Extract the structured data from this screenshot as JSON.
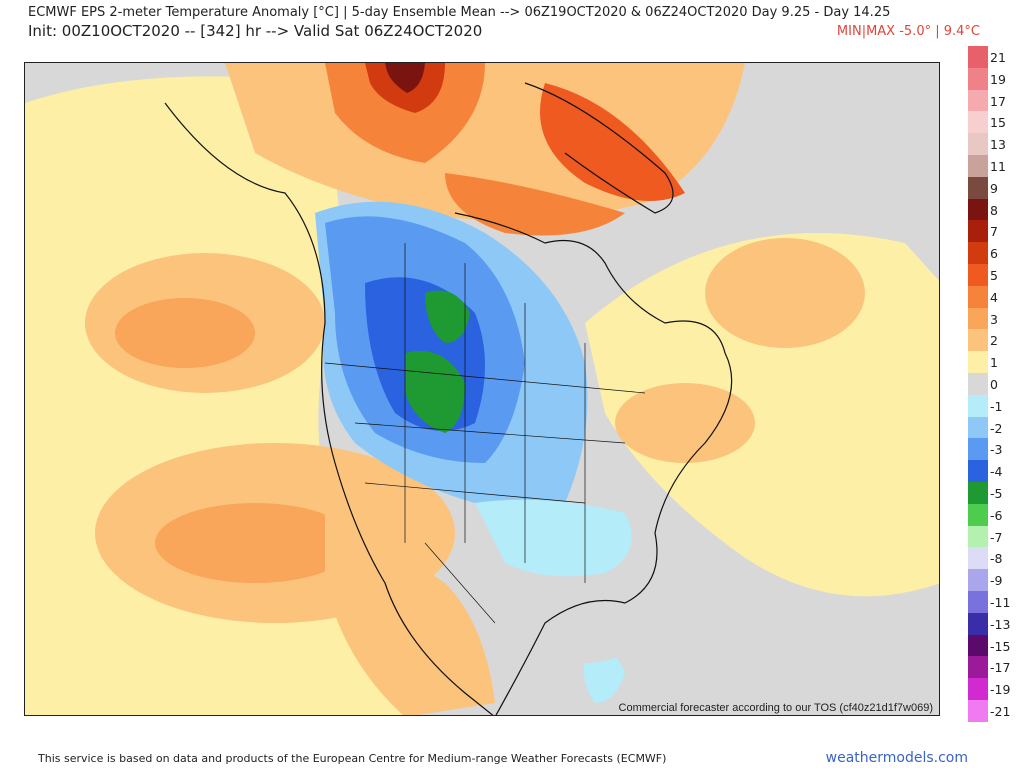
{
  "header": {
    "title": "ECMWF EPS 2-meter Temperature Anomaly [°C] | 5-day Ensemble Mean --> 06Z19OCT2020 & 06Z24OCT2020   Day 9.25 - Day 14.25",
    "init": "Init: 00Z10OCT2020 -- [342] hr --> Valid Sat 06Z24OCT2020",
    "minmax": "MIN|MAX -5.0° | 9.4°C"
  },
  "map": {
    "tos_notice": "Commercial forecaster according to our TOS (cf40z21d1f7w069)"
  },
  "legend": {
    "items": [
      {
        "label": "21",
        "color": "#e8606a"
      },
      {
        "label": "19",
        "color": "#ee8288"
      },
      {
        "label": "17",
        "color": "#f4aaae"
      },
      {
        "label": "15",
        "color": "#f7cfcf"
      },
      {
        "label": "13",
        "color": "#e8c8c2"
      },
      {
        "label": "11",
        "color": "#c9a39b"
      },
      {
        "label": "9",
        "color": "#7a4a3e"
      },
      {
        "label": "8",
        "color": "#7a1410"
      },
      {
        "label": "7",
        "color": "#a8200c"
      },
      {
        "label": "6",
        "color": "#d23a10"
      },
      {
        "label": "5",
        "color": "#ee5a20"
      },
      {
        "label": "4",
        "color": "#f5843a"
      },
      {
        "label": "3",
        "color": "#f9a55a"
      },
      {
        "label": "2",
        "color": "#fbc37c"
      },
      {
        "label": "1",
        "color": "#fdf0a6"
      },
      {
        "label": "0",
        "color": "#d8d8d8"
      },
      {
        "label": "-1",
        "color": "#b4ecfa"
      },
      {
        "label": "-2",
        "color": "#8ec8f7"
      },
      {
        "label": "-3",
        "color": "#5a9af0"
      },
      {
        "label": "-4",
        "color": "#2a62e0"
      },
      {
        "label": "-5",
        "color": "#1f9a32"
      },
      {
        "label": "-6",
        "color": "#4ecc4e"
      },
      {
        "label": "-7",
        "color": "#b4f0b0"
      },
      {
        "label": "-8",
        "color": "#dcdcf6"
      },
      {
        "label": "-9",
        "color": "#aaa6ec"
      },
      {
        "label": "-11",
        "color": "#7a72dc"
      },
      {
        "label": "-13",
        "color": "#3a2ea8"
      },
      {
        "label": "-15",
        "color": "#5a0a6a"
      },
      {
        "label": "-17",
        "color": "#9a1a9a"
      },
      {
        "label": "-19",
        "color": "#d02ad0"
      },
      {
        "label": "-21",
        "color": "#f07af0"
      }
    ]
  },
  "footer": {
    "attribution": "This service is based on data and products of the European Centre for Medium-range Weather Forecasts (ECMWF)",
    "site": "weathermodels.com"
  }
}
